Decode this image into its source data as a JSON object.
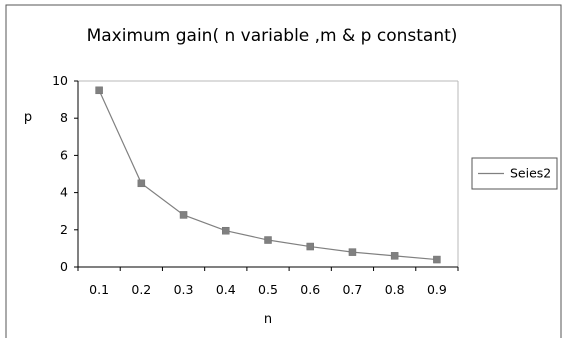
{
  "chart_data": {
    "type": "line",
    "title": "Maximum gain( n variable ,m & p constant)",
    "xlabel": "n",
    "ylabel": "p",
    "categories": [
      "0.1",
      "0.2",
      "0.3",
      "0.4",
      "0.5",
      "0.6",
      "0.7",
      "0.8",
      "0.9"
    ],
    "series": [
      {
        "name": "Seies2",
        "values": [
          9.5,
          4.5,
          2.8,
          1.95,
          1.45,
          1.1,
          0.8,
          0.6,
          0.4
        ],
        "color": "#808080",
        "marker": "square"
      }
    ],
    "ylim": [
      0,
      10
    ],
    "yticks": [
      "0",
      "2",
      "4",
      "6",
      "8",
      "10"
    ],
    "grid": false,
    "legend": "right"
  }
}
